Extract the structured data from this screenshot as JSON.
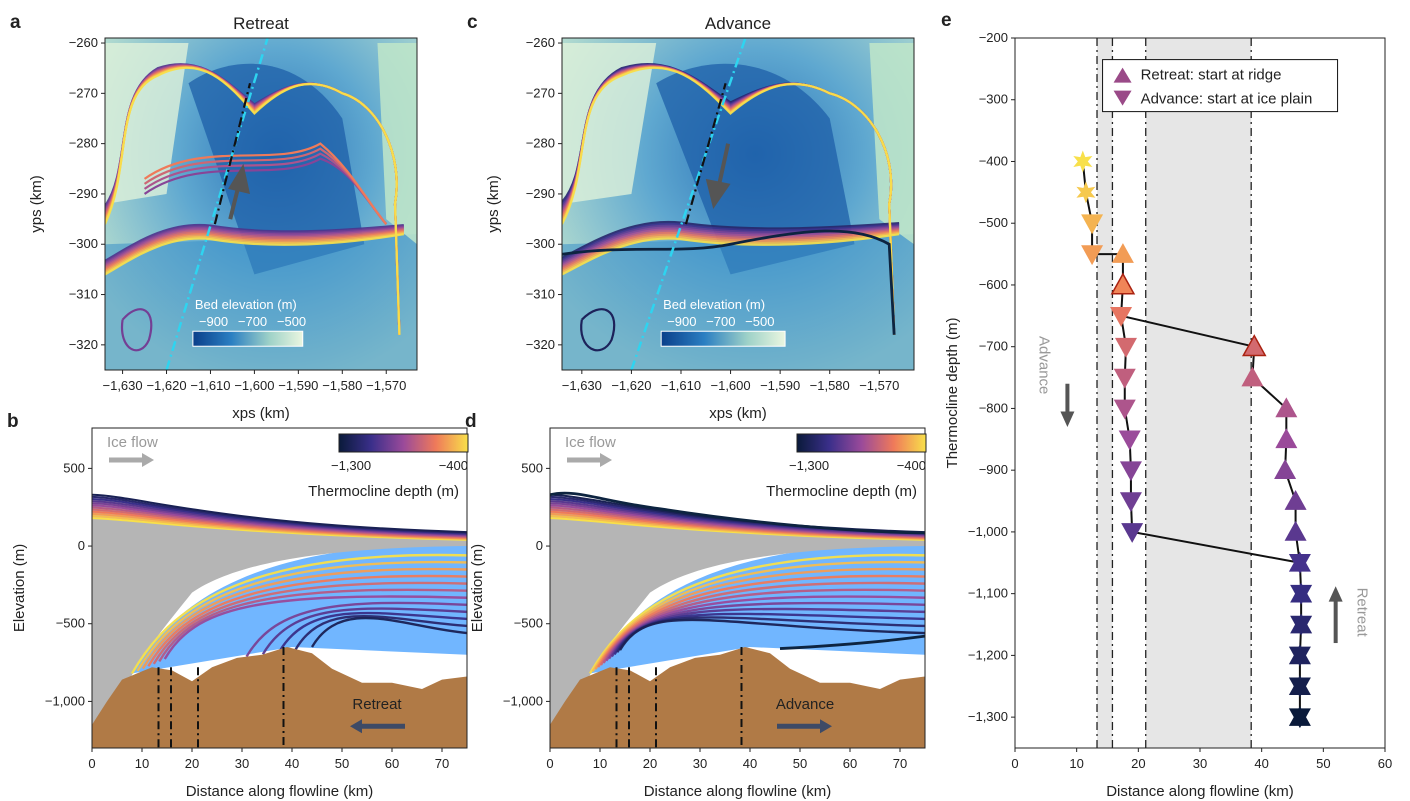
{
  "panels": {
    "a": {
      "label": "a",
      "title": "Retreat",
      "xlabel": "xps (km)",
      "ylabel": "yps (km)",
      "colorbar_title": "Bed elevation (m)",
      "colorbar_ticks": [
        "−900",
        "−700",
        "−500"
      ]
    },
    "b": {
      "label": "b",
      "xlabel": "Distance along flowline (km)",
      "ylabel": "Elevation (m)",
      "ice_flow_label": "Ice flow",
      "direction_label": "Retreat",
      "colorbar_title": "Thermocline depth (m)",
      "colorbar_ticks": [
        "−1,300",
        "−400"
      ]
    },
    "c": {
      "label": "c",
      "title": "Advance",
      "xlabel": "xps (km)",
      "ylabel": "yps (km)",
      "colorbar_title": "Bed elevation (m)",
      "colorbar_ticks": [
        "−900",
        "−700",
        "−500"
      ]
    },
    "d": {
      "label": "d",
      "xlabel": "Distance along flowline (km)",
      "ylabel": "Elevation (m)",
      "ice_flow_label": "Ice flow",
      "direction_label": "Advance",
      "colorbar_title": "Thermocline depth (m)",
      "colorbar_ticks": [
        "−1,300",
        "−400"
      ]
    },
    "e": {
      "label": "e",
      "xlabel": "Distance along flowline (km)",
      "ylabel": "Thermocline depth (m)",
      "advance_label": "Advance",
      "retreat_label": "Retreat"
    }
  },
  "map_axes": {
    "x_ticks": [
      -1630,
      -1620,
      -1610,
      -1600,
      -1590,
      -1580,
      -1570
    ],
    "x_tick_labels": [
      "−1,630",
      "−1,620",
      "−1,610",
      "−1,600",
      "−1,590",
      "−1,580",
      "−1,570"
    ],
    "y_ticks": [
      -260,
      -270,
      -280,
      -290,
      -300,
      -310,
      -320
    ],
    "y_tick_labels": [
      "−260",
      "−270",
      "−280",
      "−290",
      "−300",
      "−310",
      "−320"
    ],
    "xlim": [
      -1634,
      -1563
    ],
    "ylim": [
      -325,
      -259
    ]
  },
  "profile_axes": {
    "x_ticks": [
      0,
      10,
      20,
      30,
      40,
      50,
      60,
      70
    ],
    "x_tick_labels": [
      "0",
      "10",
      "20",
      "30",
      "40",
      "50",
      "60",
      "70"
    ],
    "y_ticks": [
      500,
      0,
      -500,
      -1000
    ],
    "y_tick_labels": [
      "500",
      "0",
      "−500",
      "−1,000"
    ],
    "xlim": [
      0,
      75
    ],
    "ylim": [
      -1300,
      760
    ],
    "dashdot_x": [
      13.3,
      15.8,
      21.2,
      38.3
    ]
  },
  "chart_data": [
    {
      "type": "scatter",
      "panel": "e",
      "xlabel": "Distance along flowline (km)",
      "ylabel": "Thermocline depth (m)",
      "xlim": [
        0,
        60
      ],
      "ylim": [
        -1350,
        -200
      ],
      "x_ticks": [
        0,
        10,
        20,
        30,
        40,
        50,
        60
      ],
      "y_ticks": [
        -200,
        -300,
        -400,
        -500,
        -600,
        -700,
        -800,
        -900,
        -1000,
        -1100,
        -1200,
        -1300
      ],
      "y_tick_labels": [
        "−200",
        "−300",
        "−400",
        "−500",
        "−600",
        "−700",
        "−800",
        "−900",
        "−1,000",
        "−1,100",
        "−1,200",
        "−1,300"
      ],
      "shaded_x_ranges": [
        [
          13.3,
          15.8
        ],
        [
          21.2,
          38.3
        ]
      ],
      "dashdot_x": [
        13.3,
        15.8,
        21.2,
        38.3
      ],
      "legend": {
        "position": "top",
        "entries": [
          "Retreat: start at ridge",
          "Advance: start at ice plain"
        ]
      },
      "series": [
        {
          "name": "Retreat: start at ridge",
          "marker": "triangle-up",
          "points": [
            {
              "x": 17.5,
              "y": -550
            },
            {
              "x": 17.5,
              "y": -600
            },
            {
              "x": 38.8,
              "y": -700
            },
            {
              "x": 38.5,
              "y": -750
            },
            {
              "x": 44.0,
              "y": -800
            },
            {
              "x": 44.0,
              "y": -850
            },
            {
              "x": 43.8,
              "y": -900
            },
            {
              "x": 45.5,
              "y": -950
            },
            {
              "x": 45.5,
              "y": -1000
            },
            {
              "x": 46.2,
              "y": -1050
            },
            {
              "x": 46.4,
              "y": -1100
            },
            {
              "x": 46.4,
              "y": -1150
            },
            {
              "x": 46.2,
              "y": -1200
            },
            {
              "x": 46.2,
              "y": -1250
            },
            {
              "x": 46.2,
              "y": -1300
            }
          ]
        },
        {
          "name": "Advance: start at ice plain",
          "marker": "triangle-down",
          "points": [
            {
              "x": 11.0,
              "y": -400
            },
            {
              "x": 11.5,
              "y": -450
            },
            {
              "x": 12.5,
              "y": -500
            },
            {
              "x": 12.5,
              "y": -550
            },
            {
              "x": 17.2,
              "y": -650
            },
            {
              "x": 18.0,
              "y": -700
            },
            {
              "x": 17.8,
              "y": -750
            },
            {
              "x": 17.8,
              "y": -800
            },
            {
              "x": 18.6,
              "y": -850
            },
            {
              "x": 18.8,
              "y": -900
            },
            {
              "x": 18.8,
              "y": -950
            },
            {
              "x": 19.0,
              "y": -1000
            }
          ]
        }
      ],
      "colors": {
        "shallow": "#f7d44a",
        "mid": "#e06a5a",
        "deep": "#3f2a8a",
        "deepest": "#0d2440"
      }
    }
  ]
}
